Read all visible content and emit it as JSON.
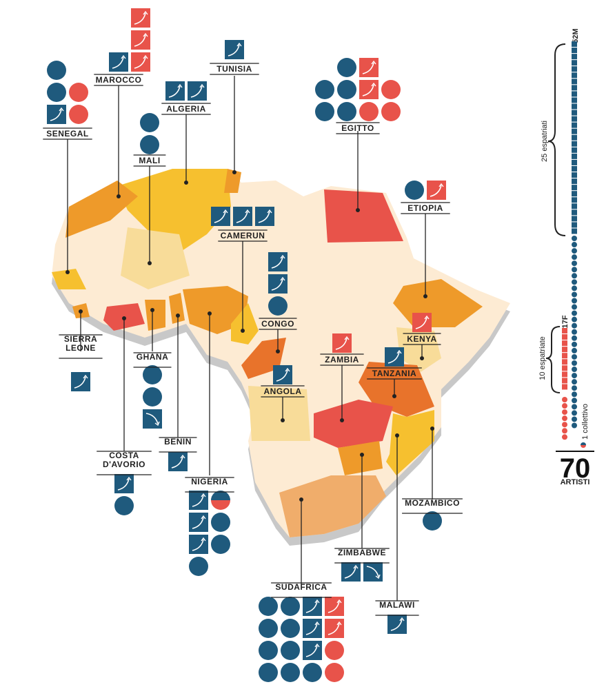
{
  "colors": {
    "blue": "#1f5a7d",
    "red": "#e8534a",
    "map_base": "#fdebd3",
    "map_shadow": "#c9c9c9",
    "yellow": "#f6c02f",
    "orange": "#ee9a2a",
    "dark_orange": "#e8732b",
    "light_yellow": "#f8dc99",
    "peach": "#f0ad6b"
  },
  "icons": {
    "square_up": "square-arrow-up-icon",
    "square_down": "square-arrow-down-icon",
    "circle": "circle-icon",
    "half": "half-circle-icon"
  },
  "countries": [
    {
      "name": "MAROCCO",
      "icons": [
        [
          "",
          "",
          "sq-red"
        ],
        [
          "",
          "",
          "sq-red"
        ],
        [
          "",
          "sq-blue",
          "sq-red"
        ]
      ]
    },
    {
      "name": "TUNISIA",
      "icons": [
        [
          "sq-blue"
        ]
      ]
    },
    {
      "name": "SENEGAL",
      "icons": [
        [
          "c-blue",
          ""
        ],
        [
          "c-blue",
          "c-red"
        ],
        [
          "sq-blue",
          "c-red"
        ]
      ]
    },
    {
      "name": "ALGERIA",
      "icons": [
        [
          "sq-blue",
          "sq-blue"
        ]
      ]
    },
    {
      "name": "MALI",
      "icons": [
        [
          "c-blue"
        ],
        [
          "c-blue"
        ]
      ]
    },
    {
      "name": "EGITTO",
      "icons": [
        [
          "",
          "c-blue",
          "sq-red",
          ""
        ],
        [
          "c-blue",
          "c-blue",
          "sq-red",
          "c-red"
        ],
        [
          "c-blue",
          "c-blue",
          "c-red",
          "c-red"
        ]
      ]
    },
    {
      "name": "ETIOPIA",
      "icons": [
        [
          "c-blue",
          "sq-red"
        ]
      ]
    },
    {
      "name": "CAMERUN",
      "icons": [
        [
          "sq-blue",
          "sq-blue",
          "sq-blue"
        ]
      ]
    },
    {
      "name": "CONGO",
      "icons": [
        [
          "sq-blue"
        ],
        [
          "sq-blue"
        ],
        [
          "c-blue"
        ]
      ]
    },
    {
      "name": "KENYA",
      "icons": [
        [
          "sq-red"
        ]
      ]
    },
    {
      "name": "ZAMBIA",
      "icons": [
        [
          "sq-red"
        ]
      ]
    },
    {
      "name": "TANZANIA",
      "icons": [
        [
          "sq-blue"
        ]
      ]
    },
    {
      "name": "ANGOLA",
      "icons": [
        [
          "sq-blue"
        ]
      ]
    },
    {
      "name": "SIERRA\nLEONE",
      "icons": [
        [
          "sq-blue"
        ]
      ]
    },
    {
      "name": "GHANA",
      "icons": [
        [
          "c-blue"
        ],
        [
          "c-blue"
        ],
        [
          "sqd-blue"
        ]
      ]
    },
    {
      "name": "BENIN",
      "icons": [
        [
          "sq-blue"
        ]
      ]
    },
    {
      "name": "COSTA\nD'AVORIO",
      "icons": [
        [
          "sq-blue"
        ],
        [
          "c-blue"
        ]
      ]
    },
    {
      "name": "NIGERIA",
      "icons": [
        [
          "sq-blue",
          "half"
        ],
        [
          "sq-blue",
          "c-blue"
        ],
        [
          "sq-blue",
          "c-blue"
        ],
        [
          "c-blue",
          ""
        ]
      ]
    },
    {
      "name": "MOZAMBICO",
      "icons": [
        [
          "c-blue"
        ]
      ]
    },
    {
      "name": "ZIMBABWE",
      "icons": [
        [
          "sq-blue",
          "sqd-blue"
        ]
      ]
    },
    {
      "name": "SUDAFRICA",
      "icons": [
        [
          "c-blue",
          "c-blue",
          "sq-blue",
          "sq-red"
        ],
        [
          "c-blue",
          "c-blue",
          "sq-blue",
          "sq-red"
        ],
        [
          "c-blue",
          "c-blue",
          "sq-blue",
          "c-red"
        ],
        [
          "c-blue",
          "c-blue",
          "c-blue",
          "c-red"
        ]
      ]
    },
    {
      "name": "MALAWI",
      "icons": [
        [
          "sq-blue"
        ]
      ]
    }
  ],
  "legend": {
    "male_label": "52M",
    "female_label": "17F",
    "expat_male_label": "25 espatriati",
    "expat_female_label": "10 espatriate",
    "collective_label": "1 collettivo",
    "total_number": "70",
    "total_label": "ARTISTI"
  }
}
